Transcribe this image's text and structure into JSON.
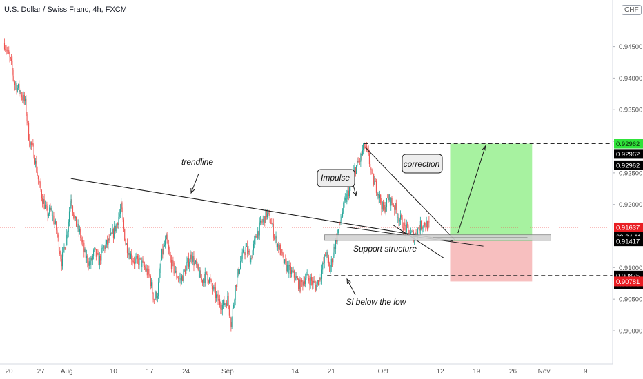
{
  "header": {
    "title": "U.S. Dollar / Swiss Franc, 4h, FXCM",
    "currency": "CHF"
  },
  "colors": {
    "up": "#26a69a",
    "down": "#ef5350",
    "price_line": "#ef5350",
    "tp_zone": "#98f08f",
    "sl_zone": "#f6b8b8",
    "badge_green": "#2fe33a",
    "badge_black": "#000000",
    "badge_red": "#e91e23"
  },
  "chart_data": {
    "type": "candlestick",
    "ylim": [
      0.897,
      0.9565
    ],
    "x_ticks": [
      {
        "label": "20",
        "day": 0
      },
      {
        "label": "27",
        "day": 7
      },
      {
        "label": "Aug",
        "day": 12
      },
      {
        "label": "10",
        "day": 21
      },
      {
        "label": "17",
        "day": 28
      },
      {
        "label": "24",
        "day": 35
      },
      {
        "label": "Sep",
        "day": 43
      },
      {
        "label": "14",
        "day": 56
      },
      {
        "label": "21",
        "day": 63
      },
      {
        "label": "Oct",
        "day": 73
      },
      {
        "label": "12",
        "day": 84
      },
      {
        "label": "19",
        "day": 91
      },
      {
        "label": "26",
        "day": 98
      },
      {
        "label": "Nov",
        "day": 104
      },
      {
        "label": "9",
        "day": 112
      }
    ],
    "y_ticks": [
      0.9,
      0.905,
      0.91,
      0.915,
      0.92,
      0.925,
      0.93,
      0.935,
      0.94,
      0.945
    ],
    "y_tick_labels": [
      "0.90000",
      "0.90500",
      "0.91000",
      "0.91500",
      "0.92000",
      "0.92500",
      "0.93000",
      "0.93500",
      "0.94000",
      "0.94500"
    ],
    "anchors": [
      [
        0,
        0.9455
      ],
      [
        1.2,
        0.9425
      ],
      [
        2,
        0.939
      ],
      [
        3,
        0.938
      ],
      [
        4,
        0.936
      ],
      [
        4.8,
        0.93
      ],
      [
        5.6,
        0.9285
      ],
      [
        6.5,
        0.924
      ],
      [
        7.3,
        0.921
      ],
      [
        8.2,
        0.9185
      ],
      [
        9,
        0.919
      ],
      [
        10,
        0.916
      ],
      [
        11,
        0.911
      ],
      [
        12,
        0.915
      ],
      [
        12.8,
        0.9215
      ],
      [
        13.5,
        0.9175
      ],
      [
        14.5,
        0.9155
      ],
      [
        15.5,
        0.912
      ],
      [
        16.5,
        0.9105
      ],
      [
        17.3,
        0.9125
      ],
      [
        18.2,
        0.911
      ],
      [
        19,
        0.913
      ],
      [
        20,
        0.914
      ],
      [
        21,
        0.9155
      ],
      [
        21.8,
        0.9175
      ],
      [
        22.5,
        0.9195
      ],
      [
        23.3,
        0.914
      ],
      [
        24,
        0.9125
      ],
      [
        25,
        0.911
      ],
      [
        26,
        0.911
      ],
      [
        27,
        0.91
      ],
      [
        28,
        0.9085
      ],
      [
        28.8,
        0.905
      ],
      [
        29.5,
        0.906
      ],
      [
        30.3,
        0.912
      ],
      [
        31.2,
        0.9145
      ],
      [
        32,
        0.911
      ],
      [
        33,
        0.909
      ],
      [
        34,
        0.908
      ],
      [
        35,
        0.91
      ],
      [
        36,
        0.912
      ],
      [
        37,
        0.91
      ],
      [
        38,
        0.908
      ],
      [
        39,
        0.909
      ],
      [
        40,
        0.907
      ],
      [
        41,
        0.905
      ],
      [
        42,
        0.904
      ],
      [
        43,
        0.905
      ],
      [
        43.7,
        0.901
      ],
      [
        44.5,
        0.907
      ],
      [
        45.5,
        0.911
      ],
      [
        46.5,
        0.913
      ],
      [
        47.5,
        0.9115
      ],
      [
        48.5,
        0.915
      ],
      [
        49.5,
        0.917
      ],
      [
        50.5,
        0.9185
      ],
      [
        51.3,
        0.9175
      ],
      [
        52,
        0.915
      ],
      [
        53,
        0.913
      ],
      [
        54,
        0.9105
      ],
      [
        55,
        0.9095
      ],
      [
        56,
        0.9085
      ],
      [
        57,
        0.907
      ],
      [
        58,
        0.9085
      ],
      [
        59,
        0.908
      ],
      [
        60,
        0.907
      ],
      [
        61,
        0.909
      ],
      [
        62,
        0.9125
      ],
      [
        62.7,
        0.9095
      ],
      [
        63.5,
        0.913
      ],
      [
        64.5,
        0.9165
      ],
      [
        65.5,
        0.92
      ],
      [
        66.5,
        0.9225
      ],
      [
        67.5,
        0.9255
      ],
      [
        68.5,
        0.927
      ],
      [
        69.3,
        0.9292
      ],
      [
        70,
        0.928
      ],
      [
        71,
        0.924
      ],
      [
        72,
        0.922
      ],
      [
        73,
        0.919
      ],
      [
        74,
        0.921
      ],
      [
        75,
        0.92
      ],
      [
        76,
        0.918
      ],
      [
        77,
        0.9165
      ],
      [
        78,
        0.9155
      ],
      [
        79,
        0.915
      ],
      [
        80,
        0.9165
      ],
      [
        81,
        0.917
      ],
      [
        82,
        0.9164
      ]
    ],
    "current_price": 0.91637,
    "price_badges": [
      {
        "label": "0.92962",
        "value": 0.92962,
        "style": "green"
      },
      {
        "label": "0.92962",
        "value": 0.928,
        "style": "black"
      },
      {
        "label": "0.92962",
        "value": 0.9262,
        "style": "black"
      },
      {
        "label": "0.91637",
        "value": 0.91637,
        "style": "red"
      },
      {
        "label": "03:34:11",
        "value": 0.91487,
        "style": "black"
      },
      {
        "label": "0.91417",
        "value": 0.91417,
        "style": "black"
      },
      {
        "label": "0.90875",
        "value": 0.90875,
        "style": "black"
      },
      {
        "label": "0.90875",
        "value": 0.9074,
        "style": "black"
      },
      {
        "label": "0.90781",
        "value": 0.90781,
        "style": "red"
      }
    ],
    "levels": {
      "high_dashed": 0.92962,
      "low_dashed": 0.90875,
      "support_top": 0.9152,
      "support_bottom": 0.9143,
      "tp_top": 0.92962,
      "tp_bottom": 0.9142,
      "sl_top": 0.9142,
      "sl_bottom": 0.90781
    },
    "annotations": {
      "trendline": "trendline",
      "impulse": "Impulse",
      "correction": "correction",
      "support": "Support structure",
      "sl": "Sl below the low"
    }
  }
}
